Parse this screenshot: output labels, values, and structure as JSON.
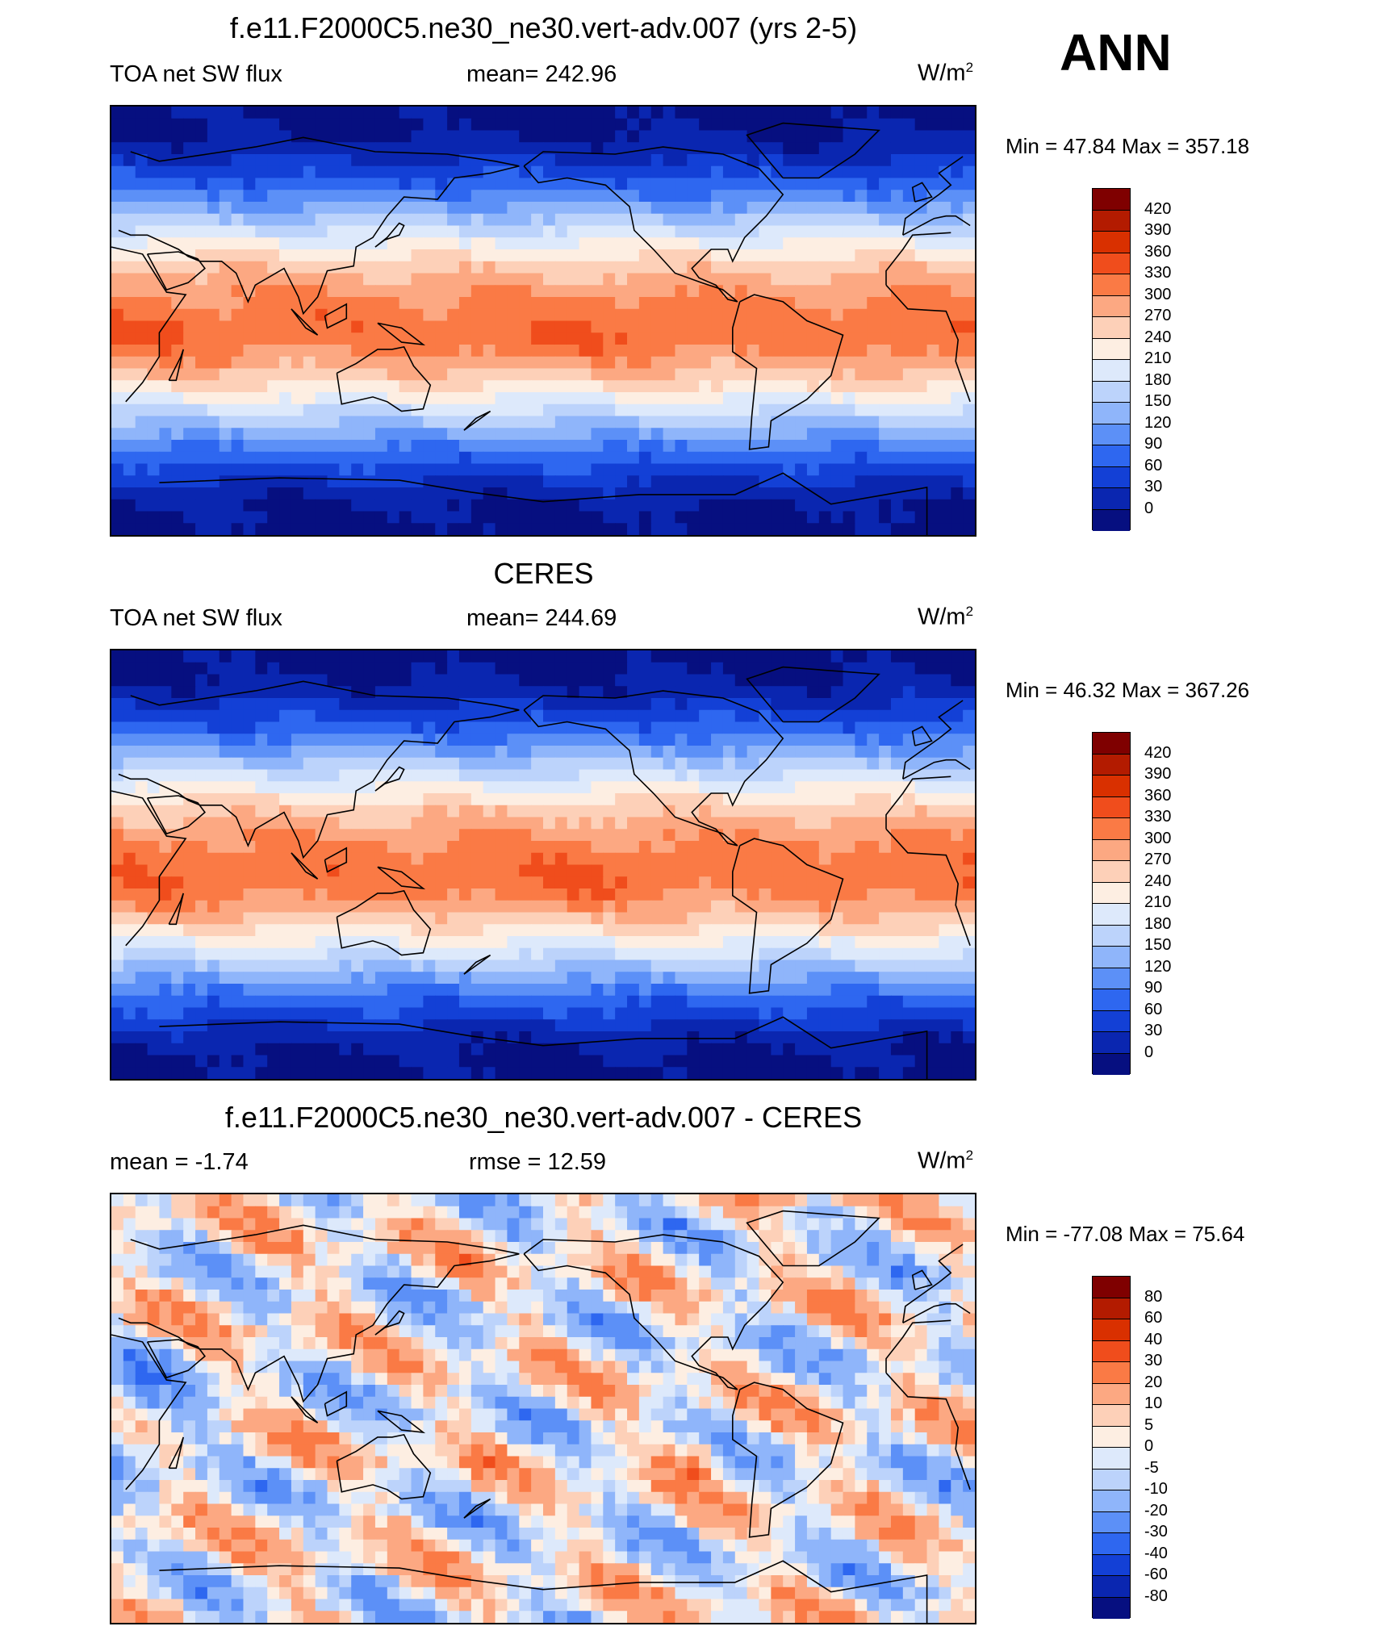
{
  "season": "ANN",
  "panels": [
    {
      "title": "f.e11.F2000C5.ne30_ne30.vert-adv.007 (yrs 2-5)",
      "left_label": "TOA net SW flux",
      "center_label": "mean= 242.96",
      "units_base": "W/m",
      "units_exp": "2",
      "minmax": "Min =  47.84 Max = 357.18",
      "levels": [
        "420",
        "390",
        "360",
        "330",
        "300",
        "270",
        "240",
        "210",
        "180",
        "150",
        "120",
        "90",
        "60",
        "30",
        "0"
      ],
      "kind": "abs",
      "seed": 1
    },
    {
      "title": "CERES",
      "left_label": "TOA net SW flux",
      "center_label": "mean= 244.69",
      "units_base": "W/m",
      "units_exp": "2",
      "minmax": "Min =  46.32 Max = 367.26",
      "levels": [
        "420",
        "390",
        "360",
        "330",
        "300",
        "270",
        "240",
        "210",
        "180",
        "150",
        "120",
        "90",
        "60",
        "30",
        "0"
      ],
      "kind": "abs",
      "seed": 2
    },
    {
      "title": "f.e11.F2000C5.ne30_ne30.vert-adv.007 - CERES",
      "left_label": "mean =  -1.74",
      "center_label": "rmse =  12.59",
      "units_base": "W/m",
      "units_exp": "2",
      "minmax": "Min = -77.08 Max =  75.64",
      "levels": [
        "80",
        "60",
        "40",
        "30",
        "20",
        "10",
        "5",
        "0",
        "-5",
        "-10",
        "-20",
        "-30",
        "-40",
        "-60",
        "-80"
      ],
      "kind": "diff",
      "seed": 3
    }
  ],
  "colors": {
    "palette": [
      "#7f0000",
      "#b31b00",
      "#d93000",
      "#f04d1c",
      "#fa7a45",
      "#fca882",
      "#fdd0b8",
      "#fdeee2",
      "#dde9fb",
      "#bcd3fb",
      "#8fb5fa",
      "#5c90f7",
      "#2e67f0",
      "#1340d6",
      "#0a26b0",
      "#060f80"
    ]
  }
}
